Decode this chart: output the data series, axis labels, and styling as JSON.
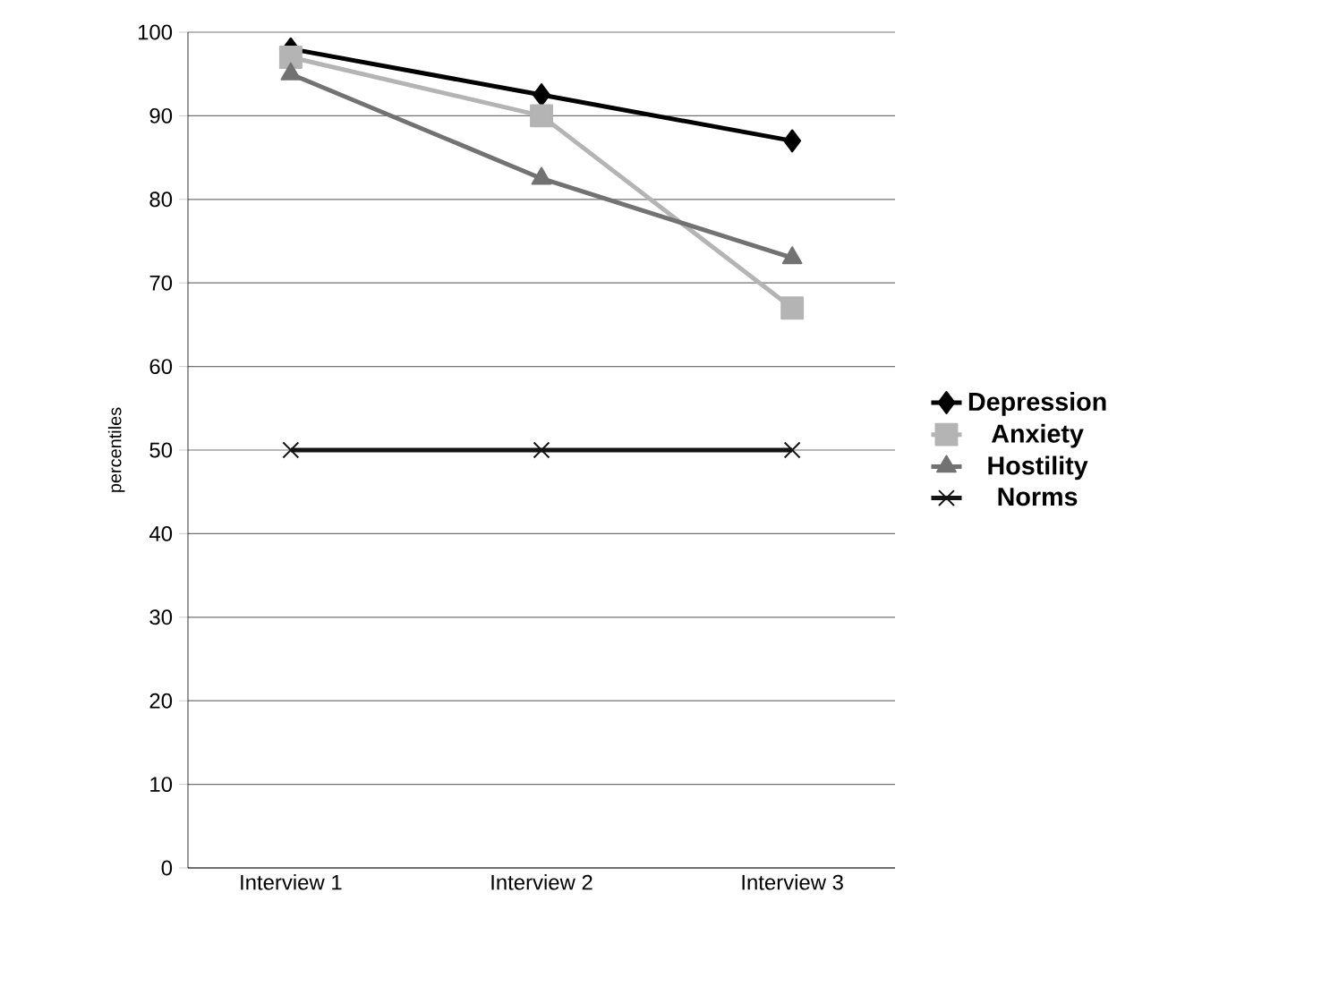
{
  "chart_data": {
    "type": "line",
    "ylabel": "percentiles",
    "categories": [
      "Interview 1",
      "Interview 2",
      "Interview 3"
    ],
    "series": [
      {
        "name": "Depression",
        "color": "#000000",
        "marker": "diamond",
        "values": [
          98,
          92.5,
          87
        ]
      },
      {
        "name": "Anxiety",
        "color": "#b4b4b4",
        "marker": "square",
        "values": [
          97,
          90,
          67
        ]
      },
      {
        "name": "Hostility",
        "color": "#727272",
        "marker": "triangle",
        "values": [
          95,
          82.5,
          73
        ]
      },
      {
        "name": "Norms",
        "color": "#141414",
        "marker": "cross",
        "values": [
          50,
          50,
          50
        ]
      }
    ],
    "ylim": [
      0,
      100
    ],
    "yticks": [
      0,
      10,
      20,
      30,
      40,
      50,
      60,
      70,
      80,
      90,
      100
    ],
    "grid": "y",
    "legend": "right",
    "line_style": "solid"
  }
}
